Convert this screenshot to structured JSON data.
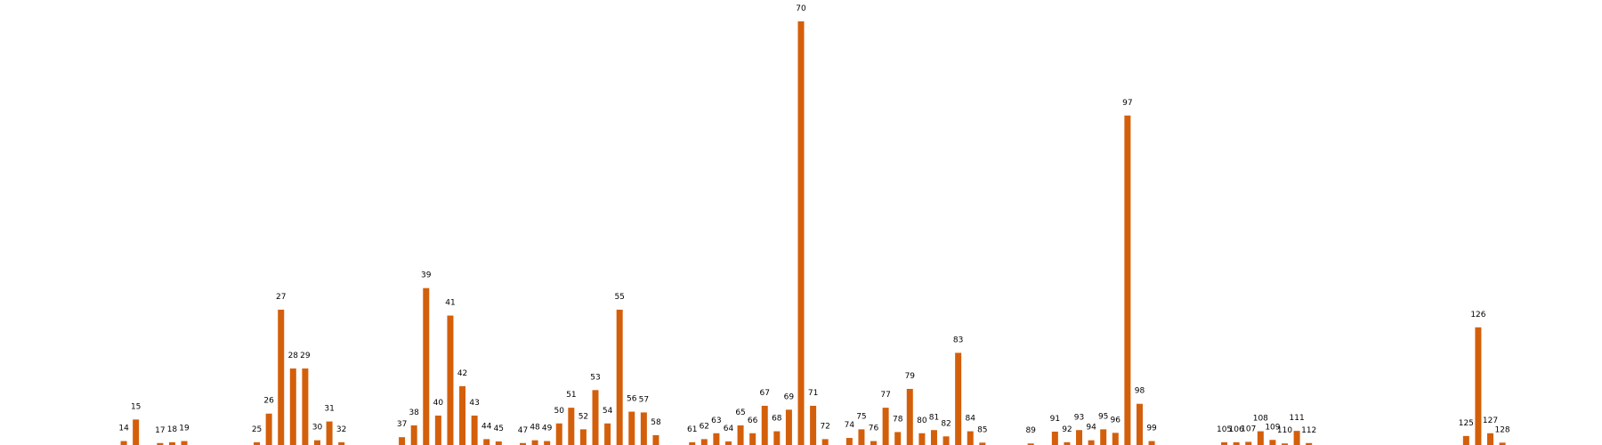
{
  "chart_data": {
    "type": "bar",
    "title": "",
    "xlabel": "",
    "ylabel": "",
    "bar_color": "#d45f0a",
    "show_axes": false,
    "grid": false,
    "legend": "none",
    "xlim": [
      4.5,
      135.5
    ],
    "ylim": [
      0,
      108
    ],
    "categories": [
      14,
      15,
      17,
      18,
      19,
      25,
      26,
      27,
      28,
      29,
      30,
      31,
      32,
      37,
      38,
      39,
      40,
      41,
      42,
      43,
      44,
      45,
      47,
      48,
      49,
      50,
      51,
      52,
      53,
      54,
      55,
      56,
      57,
      58,
      61,
      62,
      63,
      64,
      65,
      66,
      67,
      68,
      69,
      70,
      71,
      72,
      74,
      75,
      76,
      77,
      78,
      79,
      80,
      81,
      82,
      83,
      84,
      85,
      89,
      91,
      92,
      93,
      94,
      95,
      96,
      97,
      98,
      99,
      105,
      106,
      107,
      108,
      109,
      110,
      111,
      112,
      125,
      126,
      127,
      128
    ],
    "values": [
      1,
      6.5,
      0.5,
      0.7,
      1,
      0.7,
      8,
      34.5,
      19.5,
      19.5,
      1.2,
      6,
      0.7,
      2,
      5,
      40,
      7.5,
      33,
      15,
      7.5,
      1.5,
      0.9,
      0.5,
      1.2,
      1,
      5.5,
      9.5,
      4,
      14,
      5.5,
      34.5,
      8.5,
      8.3,
      2.5,
      0.7,
      1.5,
      3,
      0.9,
      5,
      3,
      10,
      3.5,
      9,
      108,
      10,
      1.5,
      1.8,
      4,
      1,
      9.5,
      3.3,
      14.3,
      3,
      3.8,
      2.2,
      23.5,
      3.5,
      0.6,
      0.4,
      3.4,
      0.7,
      3.8,
      1.2,
      4,
      3.1,
      84,
      10.5,
      1,
      0.7,
      0.7,
      0.8,
      3.5,
      1.3,
      0.4,
      3.6,
      0.5,
      2.3,
      30,
      3,
      0.6
    ]
  }
}
